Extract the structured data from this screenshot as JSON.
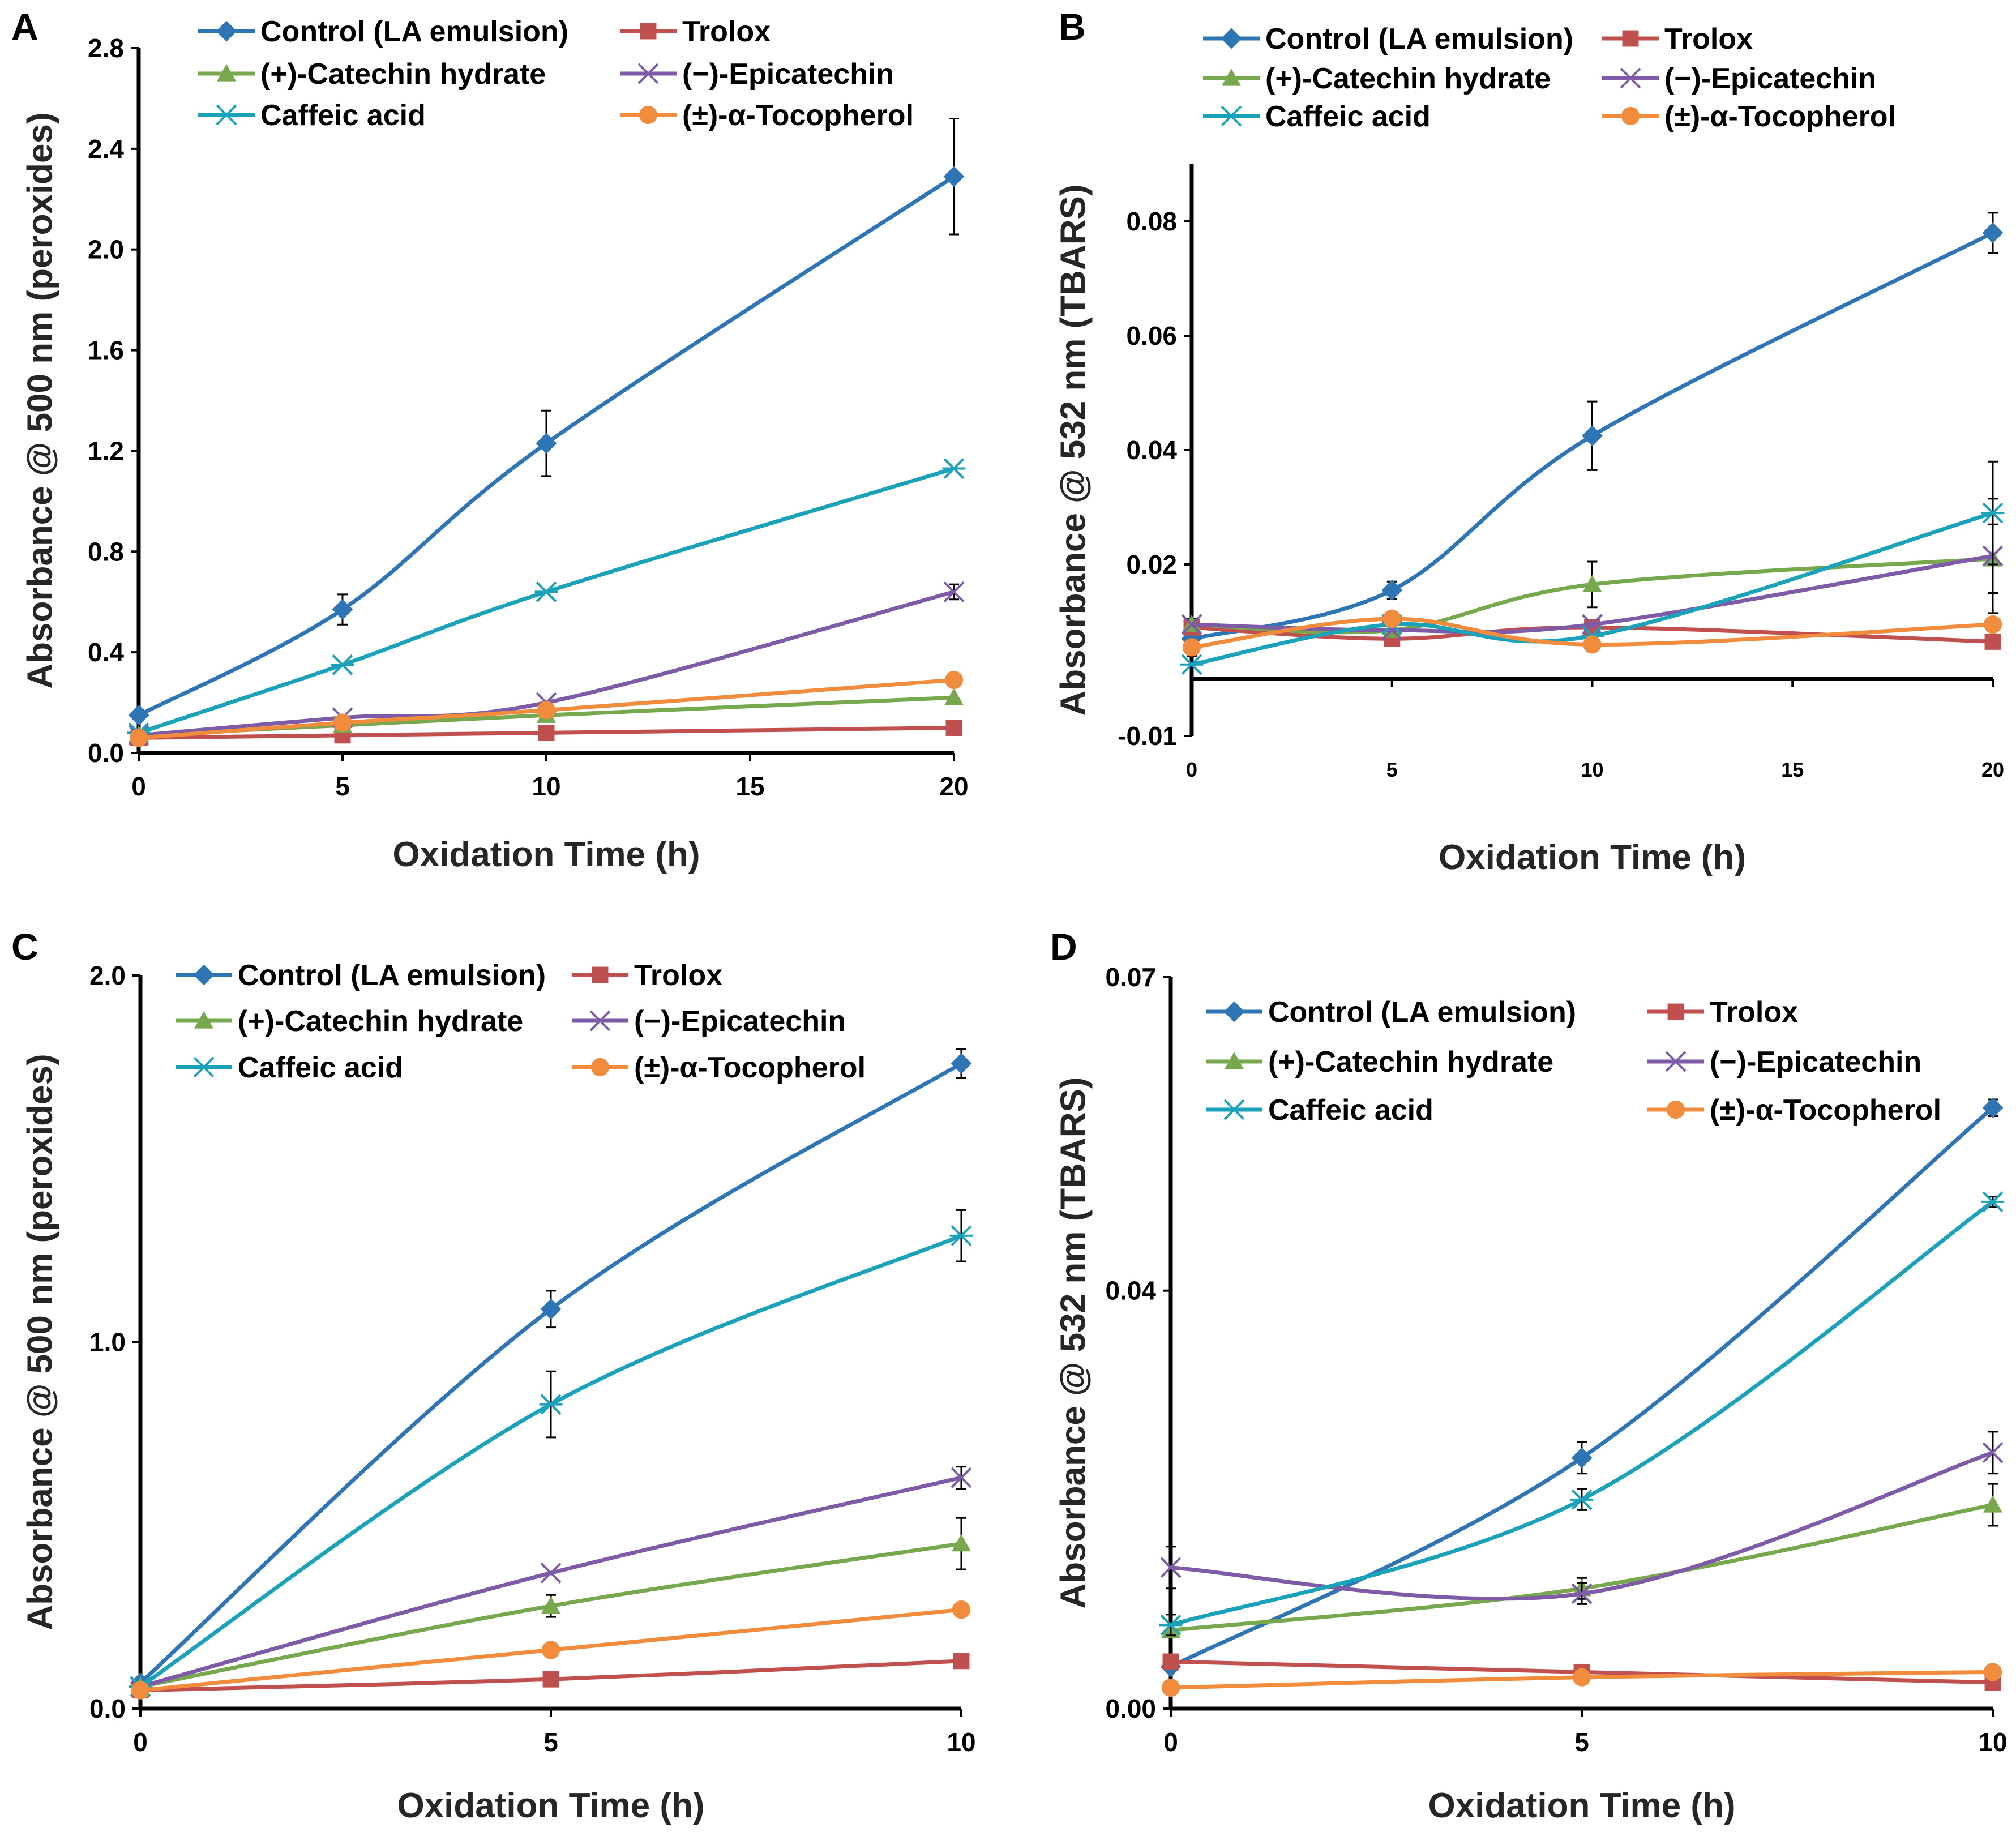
{
  "colors": {
    "control": "#2E75B6",
    "trolox": "#C0504D",
    "catechin": "#77A84D",
    "epicatechin": "#7D5BA6",
    "caffeic": "#1AA2BA",
    "tocopherol": "#F08C3C"
  },
  "chart_data": [
    {
      "panel": "A",
      "type": "line",
      "title": "",
      "xlabel": "Oxidation Time (h)",
      "ylabel": "Absorbance @ 500 nm (peroxides)",
      "xlim": [
        0,
        20
      ],
      "ylim": [
        0,
        2.8
      ],
      "xticks": [
        0,
        5,
        10,
        15,
        20
      ],
      "xtick_labels": [
        "0",
        "5",
        "10",
        "15",
        "20"
      ],
      "yticks": [
        0,
        0.4,
        0.8,
        1.2,
        1.6,
        2.0,
        2.4,
        2.8
      ],
      "ytick_labels": [
        "0.0",
        "0.4",
        "0.8",
        "1.2",
        "1.6",
        "2.0",
        "2.4",
        "2.8"
      ],
      "x_axis_at": 0,
      "legend": "top",
      "series": [
        {
          "name": "Control (LA emulsion)",
          "key": "control",
          "marker": "diamond",
          "x": [
            0,
            5,
            10,
            20
          ],
          "values": [
            0.15,
            0.57,
            1.23,
            2.29
          ],
          "err": [
            0.02,
            0.06,
            0.13,
            0.23
          ]
        },
        {
          "name": "Trolox",
          "key": "trolox",
          "marker": "square",
          "x": [
            0,
            5,
            10,
            20
          ],
          "values": [
            0.06,
            0.07,
            0.08,
            0.1
          ],
          "err": [
            0,
            0,
            0,
            0
          ]
        },
        {
          "name": "(+)-Catechin hydrate",
          "key": "catechin",
          "marker": "triangle",
          "x": [
            0,
            5,
            10,
            20
          ],
          "values": [
            0.07,
            0.11,
            0.15,
            0.22
          ],
          "err": [
            0,
            0,
            0,
            0
          ]
        },
        {
          "name": "(−)-Epicatechin",
          "key": "epicatechin",
          "marker": "x",
          "x": [
            0,
            5,
            10,
            20
          ],
          "values": [
            0.07,
            0.14,
            0.2,
            0.64
          ],
          "err": [
            0,
            0,
            0,
            0.03
          ]
        },
        {
          "name": "Caffeic acid",
          "key": "caffeic",
          "marker": "asterisk",
          "x": [
            0,
            5,
            10,
            20
          ],
          "values": [
            0.08,
            0.35,
            0.64,
            1.13
          ],
          "err": [
            0,
            0,
            0,
            0
          ]
        },
        {
          "name": "(±)-α-Tocopherol",
          "key": "tocopherol",
          "marker": "circle",
          "x": [
            0,
            5,
            10,
            20
          ],
          "values": [
            0.06,
            0.12,
            0.17,
            0.29
          ],
          "err": [
            0,
            0,
            0,
            0
          ]
        }
      ]
    },
    {
      "panel": "B",
      "type": "line",
      "title": "",
      "xlabel": "Oxidation Time (h)",
      "ylabel": "Absorbance @ 532 nm (TBARS)",
      "xlim": [
        0,
        20
      ],
      "ylim": [
        -0.01,
        0.09
      ],
      "xticks": [
        0,
        5,
        10,
        15,
        20
      ],
      "xtick_labels": [
        "0",
        "5",
        "10",
        "15",
        "20"
      ],
      "yticks": [
        -0.01,
        0.02,
        0.04,
        0.06,
        0.08
      ],
      "ytick_labels": [
        "-0.01",
        "0.02",
        "0.04",
        "0.06",
        "0.08"
      ],
      "x_axis_at": 0,
      "legend": "top",
      "series": [
        {
          "name": "Control (LA emulsion)",
          "key": "control",
          "marker": "diamond",
          "x": [
            0,
            5,
            10,
            20
          ],
          "values": [
            0.007,
            0.0155,
            0.0425,
            0.078
          ],
          "err": [
            0.003,
            0.0015,
            0.006,
            0.0035
          ]
        },
        {
          "name": "Trolox",
          "key": "trolox",
          "marker": "square",
          "x": [
            0,
            5,
            10,
            20
          ],
          "values": [
            0.009,
            0.007,
            0.009,
            0.0065
          ],
          "err": [
            0,
            0,
            0,
            0
          ]
        },
        {
          "name": "(+)-Catechin hydrate",
          "key": "catechin",
          "marker": "triangle",
          "x": [
            0,
            5,
            10,
            20
          ],
          "values": [
            0.0095,
            0.0085,
            0.0165,
            0.021
          ],
          "err": [
            0.001,
            0,
            0.004,
            0.006
          ]
        },
        {
          "name": "(−)-Epicatechin",
          "key": "epicatechin",
          "marker": "x",
          "x": [
            0,
            5,
            10,
            20
          ],
          "values": [
            0.0095,
            0.0085,
            0.0095,
            0.0215
          ],
          "err": [
            0,
            0,
            0,
            0.01
          ]
        },
        {
          "name": "Caffeic acid",
          "key": "caffeic",
          "marker": "asterisk",
          "x": [
            0,
            5,
            10,
            20
          ],
          "values": [
            0.0025,
            0.0095,
            0.0075,
            0.029
          ],
          "err": [
            0,
            0,
            0,
            0.009
          ]
        },
        {
          "name": "(±)-α-Tocopherol",
          "key": "tocopherol",
          "marker": "circle",
          "x": [
            0,
            5,
            10,
            20
          ],
          "values": [
            0.0055,
            0.0105,
            0.006,
            0.0095
          ],
          "err": [
            0,
            0,
            0,
            0
          ]
        }
      ]
    },
    {
      "panel": "C",
      "type": "line",
      "title": "",
      "xlabel": "Oxidation Time (h)",
      "ylabel": "Absorbance @ 500 nm (peroxides)",
      "xlim": [
        0,
        10
      ],
      "ylim": [
        0,
        2.0
      ],
      "xticks": [
        0,
        5,
        10
      ],
      "xtick_labels": [
        "0",
        "5",
        "10"
      ],
      "yticks": [
        0,
        1.0,
        2.0
      ],
      "ytick_labels": [
        "0.0",
        "1.0",
        "2.0"
      ],
      "x_axis_at": 0,
      "legend": "top",
      "series": [
        {
          "name": "Control (LA emulsion)",
          "key": "control",
          "marker": "diamond",
          "x": [
            0,
            5,
            10
          ],
          "values": [
            0.07,
            1.09,
            1.76
          ],
          "err": [
            0,
            0.05,
            0.04
          ]
        },
        {
          "name": "Trolox",
          "key": "trolox",
          "marker": "square",
          "x": [
            0,
            5,
            10
          ],
          "values": [
            0.05,
            0.08,
            0.13
          ],
          "err": [
            0,
            0,
            0
          ]
        },
        {
          "name": "(+)-Catechin hydrate",
          "key": "catechin",
          "marker": "triangle",
          "x": [
            0,
            5,
            10
          ],
          "values": [
            0.06,
            0.28,
            0.45
          ],
          "err": [
            0,
            0.03,
            0.07
          ]
        },
        {
          "name": "(−)-Epicatechin",
          "key": "epicatechin",
          "marker": "x",
          "x": [
            0,
            5,
            10
          ],
          "values": [
            0.06,
            0.37,
            0.63
          ],
          "err": [
            0,
            0,
            0.03
          ]
        },
        {
          "name": "Caffeic acid",
          "key": "caffeic",
          "marker": "asterisk",
          "x": [
            0,
            5,
            10
          ],
          "values": [
            0.06,
            0.83,
            1.29
          ],
          "err": [
            0,
            0.09,
            0.07
          ]
        },
        {
          "name": "(±)-α-Tocopherol",
          "key": "tocopherol",
          "marker": "circle",
          "x": [
            0,
            5,
            10
          ],
          "values": [
            0.05,
            0.16,
            0.27
          ],
          "err": [
            0,
            0,
            0
          ]
        }
      ]
    },
    {
      "panel": "D",
      "type": "line",
      "title": "",
      "xlabel": "Oxidation Time (h)",
      "ylabel": "Absorbance @ 532 nm (TBARS)",
      "xlim": [
        0,
        10
      ],
      "ylim": [
        0,
        0.07
      ],
      "xticks": [
        0,
        5,
        10
      ],
      "xtick_labels": [
        "0",
        "5",
        "10"
      ],
      "yticks": [
        0,
        0.04,
        0.07
      ],
      "ytick_labels": [
        "0.00",
        "0.04",
        "0.07"
      ],
      "x_axis_at": 0,
      "legend": "top",
      "series": [
        {
          "name": "Control (LA emulsion)",
          "key": "control",
          "marker": "diamond",
          "x": [
            0,
            5,
            10
          ],
          "values": [
            0.004,
            0.024,
            0.0575
          ],
          "err": [
            0,
            0.0015,
            0.0008
          ]
        },
        {
          "name": "Trolox",
          "key": "trolox",
          "marker": "square",
          "x": [
            0,
            5,
            10
          ],
          "values": [
            0.0045,
            0.0035,
            0.0025
          ],
          "err": [
            0,
            0,
            0
          ]
        },
        {
          "name": "(+)-Catechin hydrate",
          "key": "catechin",
          "marker": "triangle",
          "x": [
            0,
            5,
            10
          ],
          "values": [
            0.0075,
            0.0115,
            0.0195
          ],
          "err": [
            0,
            0.001,
            0.002
          ]
        },
        {
          "name": "(−)-Epicatechin",
          "key": "epicatechin",
          "marker": "x",
          "x": [
            0,
            5,
            10
          ],
          "values": [
            0.0135,
            0.011,
            0.0245
          ],
          "err": [
            0.002,
            0.001,
            0.002
          ]
        },
        {
          "name": "Caffeic acid",
          "key": "caffeic",
          "marker": "asterisk",
          "x": [
            0,
            5,
            10
          ],
          "values": [
            0.008,
            0.02,
            0.0485
          ],
          "err": [
            0.001,
            0.001,
            0.0005
          ]
        },
        {
          "name": "(±)-α-Tocopherol",
          "key": "tocopherol",
          "marker": "circle",
          "x": [
            0,
            5,
            10
          ],
          "values": [
            0.002,
            0.003,
            0.0035
          ],
          "err": [
            0,
            0,
            0
          ]
        }
      ]
    }
  ]
}
